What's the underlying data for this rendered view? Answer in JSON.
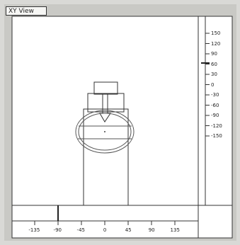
{
  "window": {
    "title": "XY View"
  },
  "y_ruler": {
    "labels": [
      "150",
      "120",
      "90",
      "60",
      "30",
      "0",
      "-30",
      "-60",
      "-90",
      "-120",
      "-150"
    ],
    "values": [
      150,
      120,
      90,
      60,
      30,
      0,
      -30,
      -60,
      -90,
      -120,
      -150
    ]
  },
  "x_ruler": {
    "labels": [
      "-135",
      "-90",
      "-45",
      "0",
      "45",
      "90",
      "135"
    ],
    "values": [
      -135,
      -90,
      -45,
      0,
      45,
      90,
      135
    ]
  }
}
